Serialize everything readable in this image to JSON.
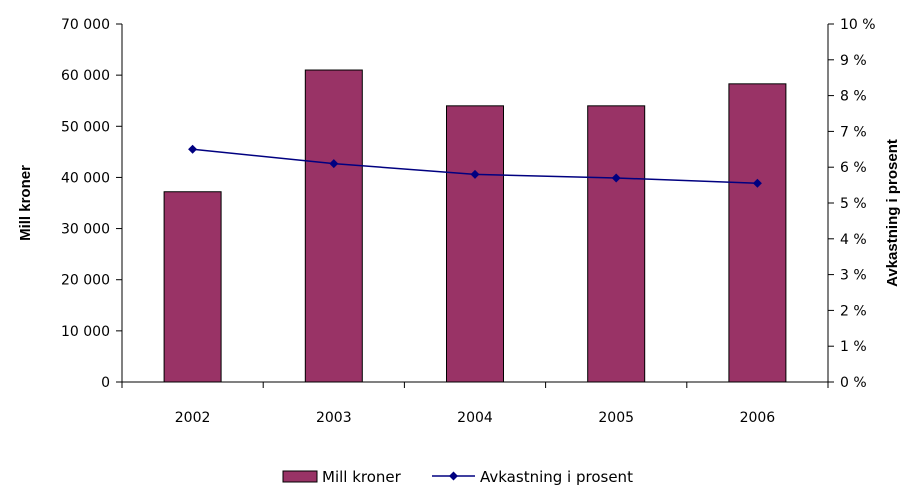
{
  "chart_data": {
    "type": "bar",
    "categories": [
      "2002",
      "2003",
      "2004",
      "2005",
      "2006"
    ],
    "series": [
      {
        "name": "Mill kroner",
        "type": "bar",
        "axis": "left",
        "values": [
          37200,
          61000,
          54000,
          54000,
          58300
        ]
      },
      {
        "name": "Avkastning i prosent",
        "type": "line",
        "axis": "right",
        "values": [
          6.5,
          6.1,
          5.8,
          5.7,
          5.55
        ]
      }
    ],
    "ylabel": "Mill kroner",
    "y2label": "Avkastning i prosent",
    "ylim": [
      0,
      70000
    ],
    "y2lim": [
      0,
      10
    ],
    "yticks": [
      "0",
      "10 000",
      "20 000",
      "30 000",
      "40 000",
      "50 000",
      "60 000",
      "70 000"
    ],
    "y2ticks": [
      "0 %",
      "1 %",
      "2 %",
      "3 %",
      "4 %",
      "5 %",
      "6 %",
      "7 %",
      "8 %",
      "9 %",
      "10 %"
    ],
    "grid": false,
    "legend_position": "bottom",
    "colors": {
      "bar": "#993366",
      "line": "#000080",
      "axis": "#000000"
    }
  }
}
